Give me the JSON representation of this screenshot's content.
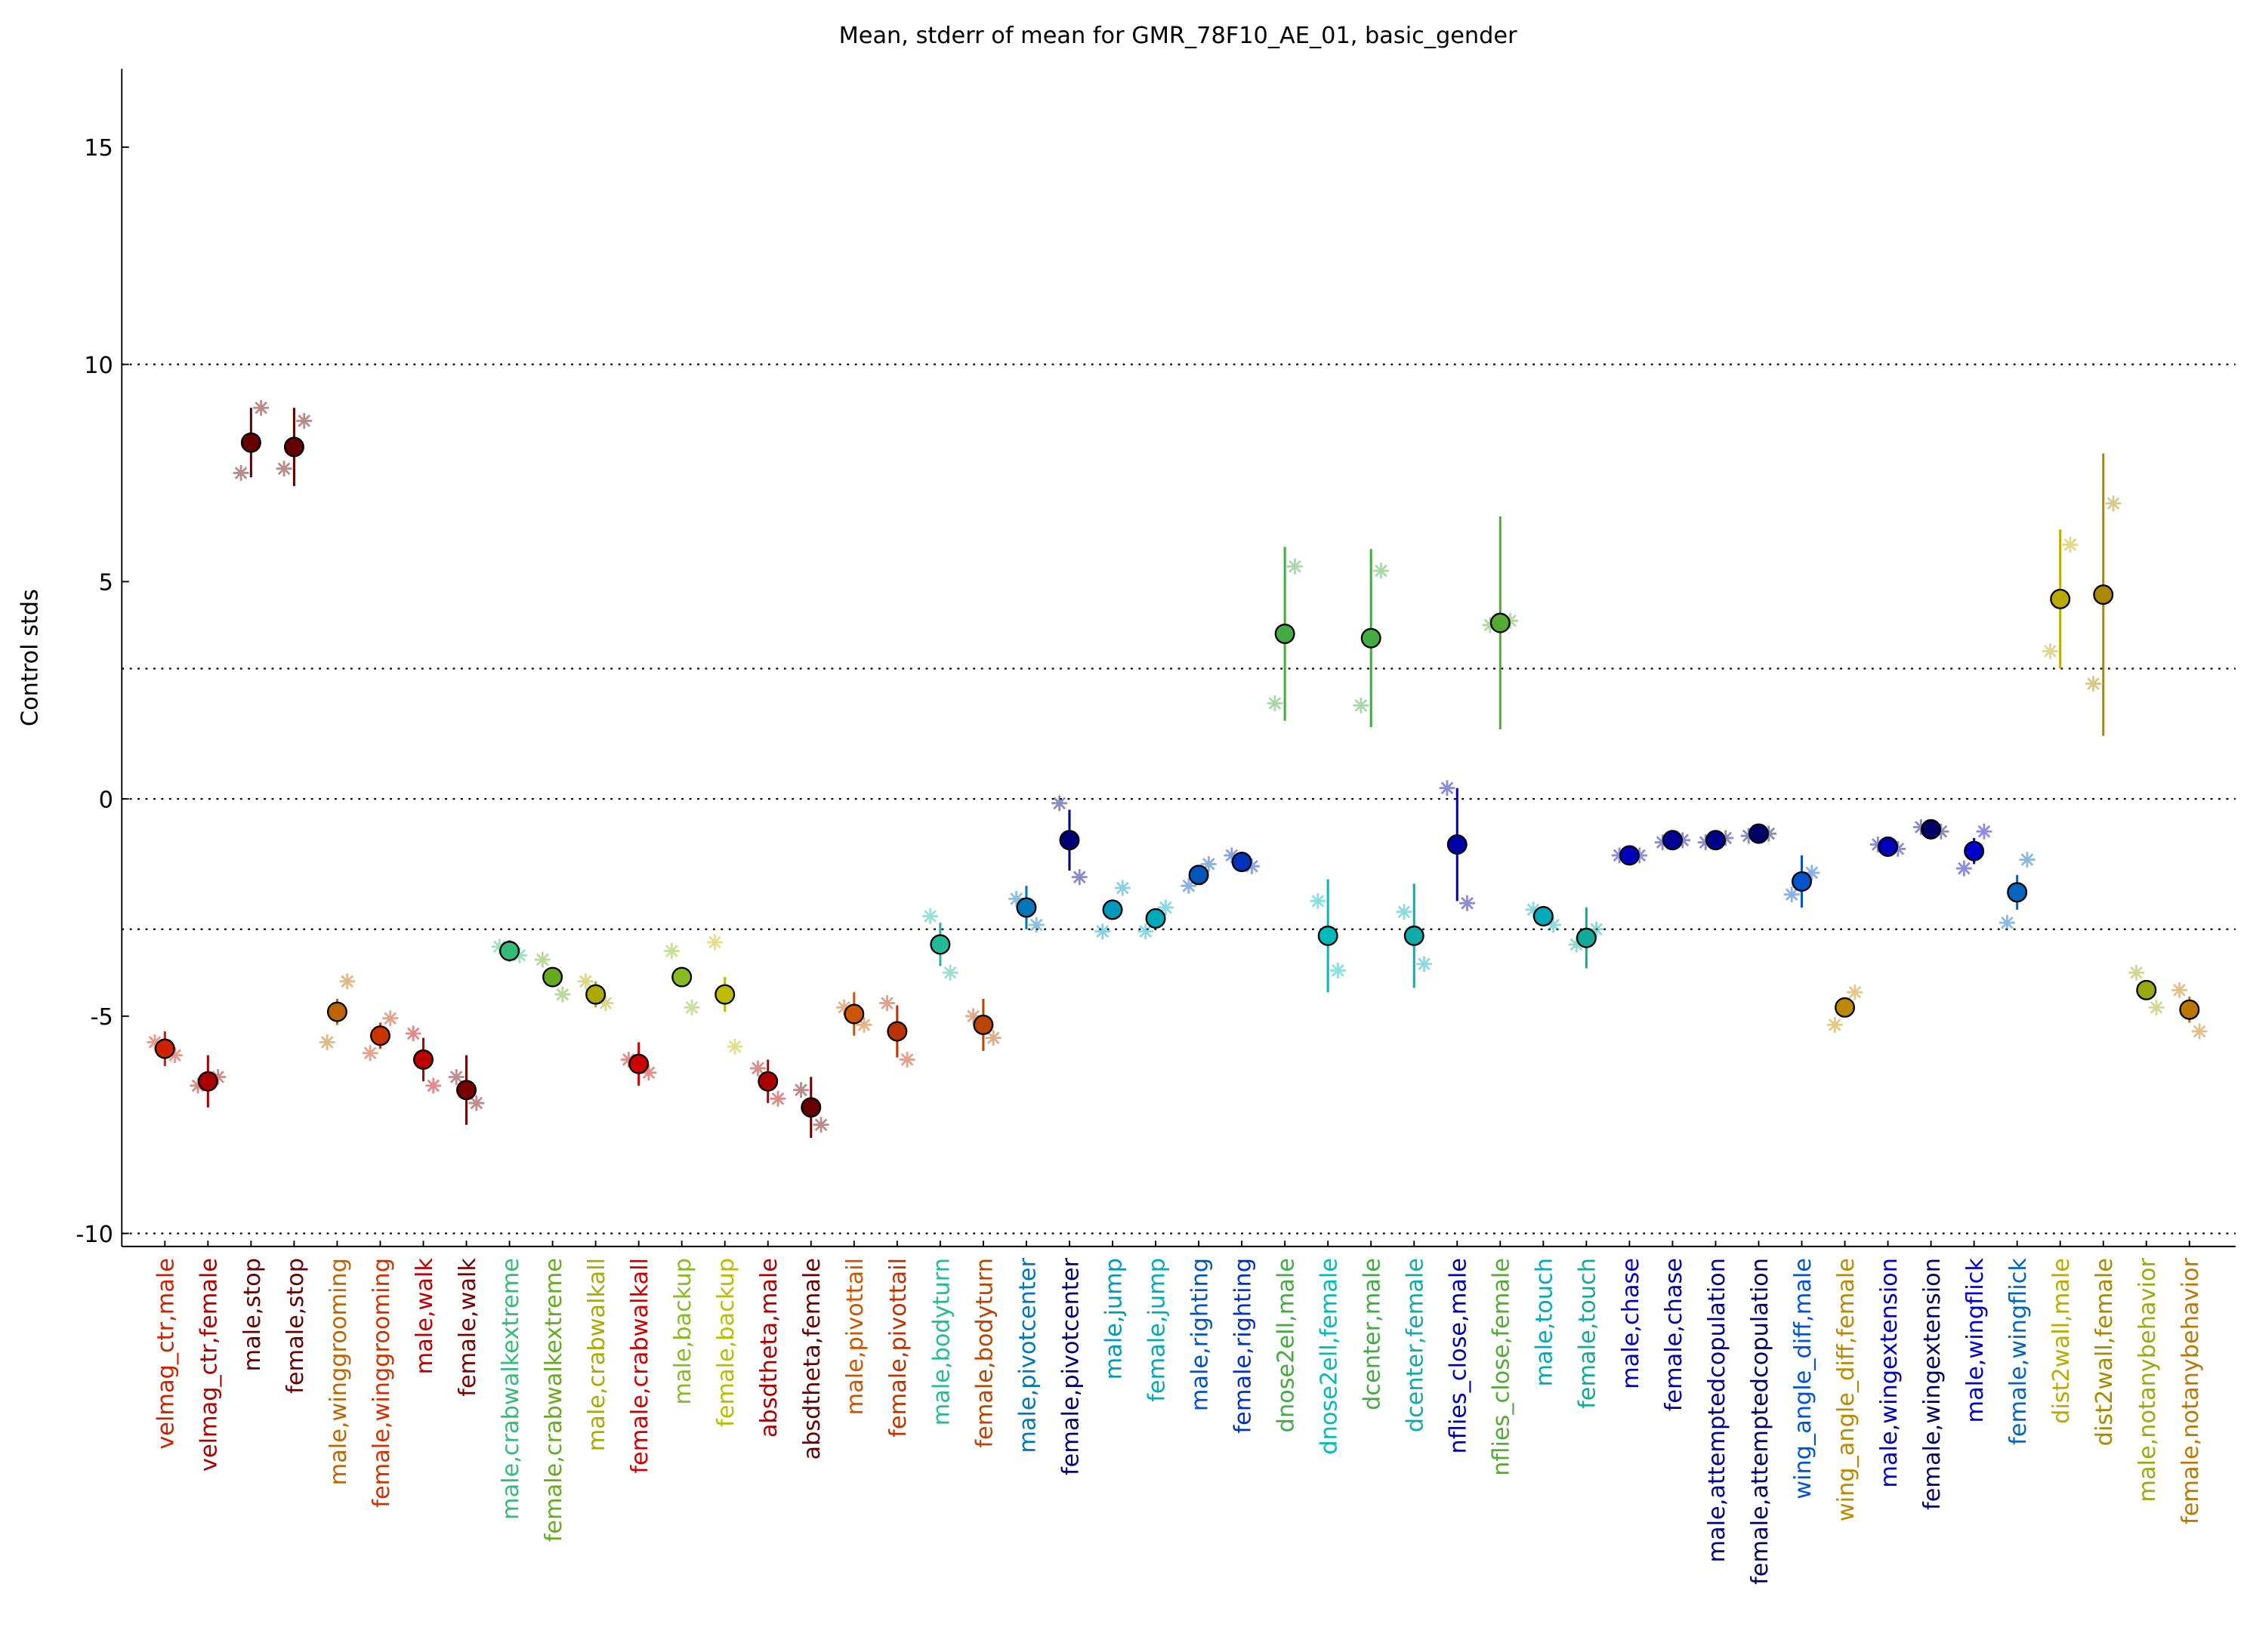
{
  "chart_data": {
    "type": "errorbar",
    "title": "Mean, stderr of mean for GMR_78F10_AE_01, basic_gender",
    "ylabel": "Control stds",
    "categories": [
      "velmag_ctr,male",
      "velmag_ctr,female",
      "male,stop",
      "female,stop",
      "male,winggrooming",
      "female,winggrooming",
      "male,walk",
      "female,walk",
      "male,crabwalkextreme",
      "female,crabwalkextreme",
      "male,crabwalkall",
      "female,crabwalkall",
      "male,backup",
      "female,backup",
      "absdtheta,male",
      "absdtheta,female",
      "male,pivottail",
      "female,pivottail",
      "male,bodyturn",
      "female,bodyturn",
      "male,pivotcenter",
      "female,pivotcenter",
      "male,jump",
      "female,jump",
      "male,righting",
      "female,righting",
      "dnose2ell,male",
      "dnose2ell,female",
      "dcenter,male",
      "dcenter,female",
      "nflies_close,male",
      "nflies_close,female",
      "male,touch",
      "female,touch",
      "male,chase",
      "female,chase",
      "male,attemptedcopulation",
      "female,attemptedcopulation",
      "wing_angle_diff,male",
      "wing_angle_diff,female",
      "male,wingextension",
      "female,wingextension",
      "male,wingflick",
      "female,wingflick",
      "dist2wall,male",
      "dist2wall,female",
      "male,notanybehavior",
      "female,notanybehavior"
    ],
    "values": [
      -5.75,
      -6.5,
      8.2,
      8.1,
      -4.9,
      -5.45,
      -6.0,
      -6.7,
      -3.5,
      -4.1,
      -4.5,
      -6.1,
      -4.1,
      -4.5,
      -6.5,
      -7.1,
      -4.95,
      -5.35,
      -3.35,
      -5.2,
      -2.5,
      -0.95,
      -2.55,
      -2.75,
      -1.75,
      -1.45,
      3.8,
      -3.15,
      3.7,
      -3.15,
      -1.05,
      4.05,
      -2.7,
      -3.2,
      -1.3,
      -0.95,
      -0.95,
      -0.8,
      -1.9,
      -4.8,
      -1.1,
      -0.7,
      -1.2,
      -2.15,
      4.6,
      4.7,
      -4.4,
      -4.85
    ],
    "errors": [
      0.4,
      0.6,
      0.8,
      0.9,
      0.3,
      0.3,
      0.5,
      0.8,
      0.25,
      0.2,
      0.3,
      0.5,
      0.2,
      0.4,
      0.5,
      0.7,
      0.5,
      0.6,
      0.5,
      0.6,
      0.5,
      0.7,
      0.2,
      0.2,
      0.2,
      0.15,
      2.0,
      1.3,
      2.05,
      1.2,
      1.3,
      2.45,
      0.15,
      0.7,
      0.1,
      0.1,
      0.1,
      0.1,
      0.6,
      0.2,
      0.1,
      0.1,
      0.3,
      0.4,
      1.6,
      3.25,
      0.2,
      0.3
    ],
    "experiments": [
      [
        -5.6,
        -5.9
      ],
      [
        -6.6,
        -6.4
      ],
      [
        7.5,
        9.0
      ],
      [
        7.6,
        8.7
      ],
      [
        -5.6,
        -4.2
      ],
      [
        -5.85,
        -5.05
      ],
      [
        -5.4,
        -6.6
      ],
      [
        -6.4,
        -7.0
      ],
      [
        -3.4,
        -3.6
      ],
      [
        -3.7,
        -4.5
      ],
      [
        -4.2,
        -4.7
      ],
      [
        -6.0,
        -6.3
      ],
      [
        -3.5,
        -4.8
      ],
      [
        -3.3,
        -5.7
      ],
      [
        -6.2,
        -6.9
      ],
      [
        -6.7,
        -7.5
      ],
      [
        -4.8,
        -5.2
      ],
      [
        -4.7,
        -6.0
      ],
      [
        -2.7,
        -4.0
      ],
      [
        -5.0,
        -5.5
      ],
      [
        -2.3,
        -2.9
      ],
      [
        -0.1,
        -1.8
      ],
      [
        -3.05,
        -2.05
      ],
      [
        -3.05,
        -2.5
      ],
      [
        -2.0,
        -1.5
      ],
      [
        -1.3,
        -1.55
      ],
      [
        2.2,
        5.35
      ],
      [
        -2.35,
        -3.95
      ],
      [
        2.15,
        5.25
      ],
      [
        -2.6,
        -3.8
      ],
      [
        0.25,
        -2.4
      ],
      [
        4.0,
        4.1
      ],
      [
        -2.55,
        -2.9
      ],
      [
        -3.35,
        -3.0
      ],
      [
        -1.3,
        -1.3
      ],
      [
        -1.0,
        -0.95
      ],
      [
        -1.0,
        -0.9
      ],
      [
        -0.85,
        -0.8
      ],
      [
        -2.2,
        -1.7
      ],
      [
        -5.2,
        -4.45
      ],
      [
        -1.05,
        -1.15
      ],
      [
        -0.65,
        -0.75
      ],
      [
        -1.6,
        -0.75
      ],
      [
        -2.85,
        -1.4
      ],
      [
        3.4,
        5.85
      ],
      [
        2.65,
        6.8
      ],
      [
        -4.0,
        -4.8
      ],
      [
        -4.4,
        -5.35
      ]
    ],
    "colors": [
      "#cc2200",
      "#aa0000",
      "#660000",
      "#660000",
      "#bb6600",
      "#cc3300",
      "#bb0000",
      "#770000",
      "#33bb77",
      "#66aa22",
      "#aaaa00",
      "#cc0000",
      "#88bb22",
      "#bbbb00",
      "#aa0000",
      "#660000",
      "#cc5500",
      "#bb3300",
      "#22bb99",
      "#bb4400",
      "#0077bb",
      "#000077",
      "#0099bb",
      "#00aabb",
      "#0055bb",
      "#0033bb",
      "#44aa44",
      "#00bbbb",
      "#44aa44",
      "#11aaaa",
      "#0000aa",
      "#55aa33",
      "#00aabb",
      "#11aa99",
      "#0000bb",
      "#000099",
      "#000088",
      "#000066",
      "#0055cc",
      "#bb8800",
      "#0000bb",
      "#000066",
      "#0000cc",
      "#0066bb",
      "#bbaa00",
      "#aa8800",
      "#99aa11",
      "#bb7700"
    ],
    "ylim": [
      -10.3,
      16.8
    ],
    "yticks": [
      -10,
      -5,
      0,
      5,
      10,
      15
    ],
    "reference_lines": [
      -10,
      -3,
      0,
      3,
      10
    ]
  }
}
